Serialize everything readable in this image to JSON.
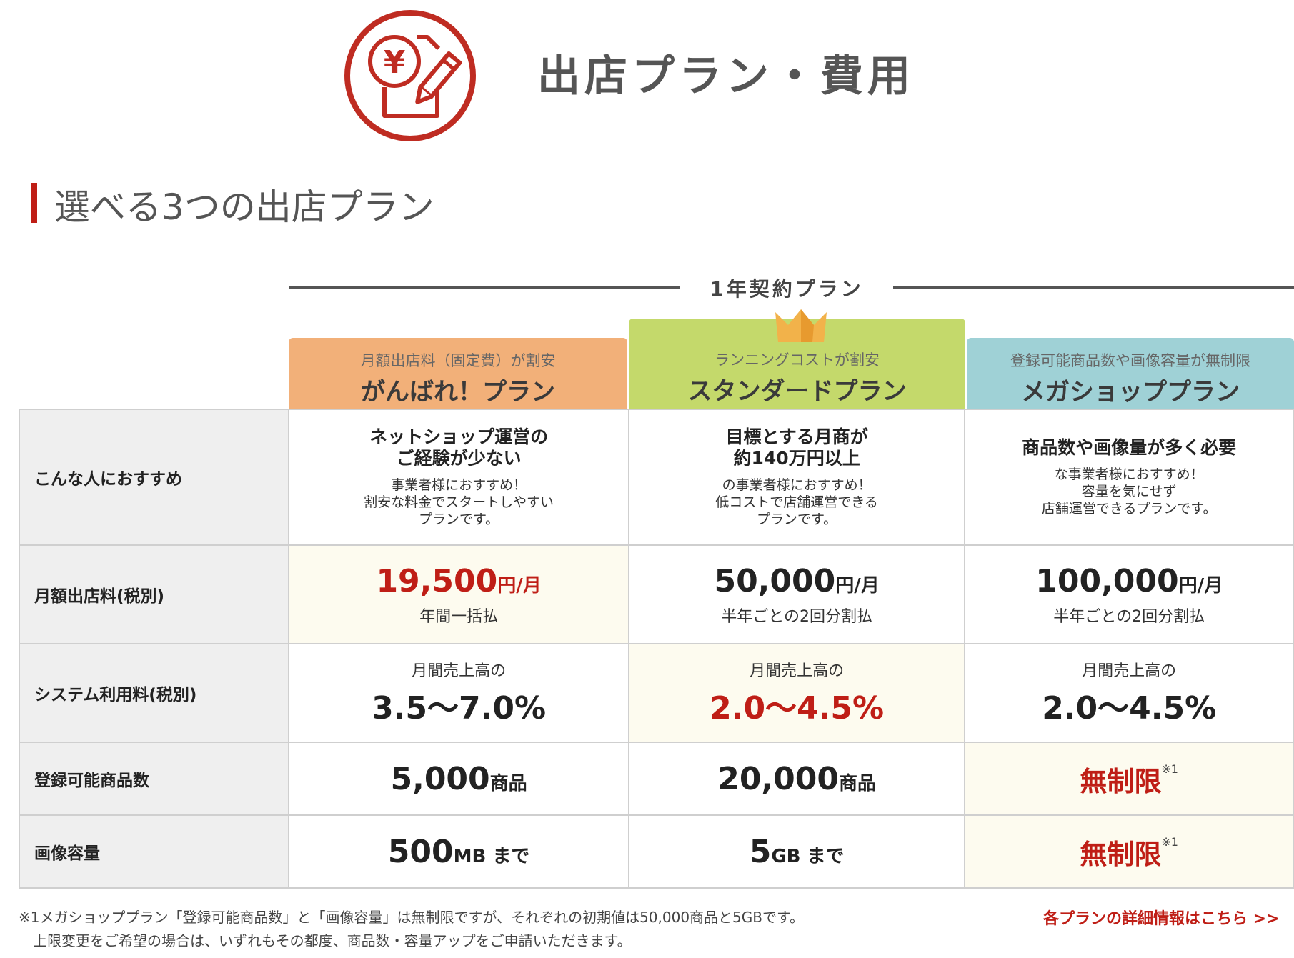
{
  "header": {
    "title": "出店プラン・費用",
    "icon": "yen-document-pen-icon"
  },
  "section": {
    "title": "選べる3つの出店プラン"
  },
  "contract_label": "1年契約プラン",
  "plans": [
    {
      "tagline": "月額出店料（固定費）が割安",
      "name": "がんばれ！プラン",
      "color": "#f2b079",
      "recommend_title_1": "ネットショップ運営の",
      "recommend_title_2": "ご経験が少ない",
      "recommend_desc_1": "事業者様におすすめ！",
      "recommend_desc_2": "割安な料金でスタートしやすい",
      "recommend_desc_3": "プランです。",
      "monthly_fee": "19,500",
      "monthly_fee_unit": "円/月",
      "payment": "年間一括払",
      "rate_prefix": "月間売上高の",
      "rate": "3.5〜7.0%",
      "products": "5,000",
      "products_unit": "商品",
      "image_capacity": "500",
      "image_capacity_unit": "MB まで"
    },
    {
      "tagline": "ランニングコストが割安",
      "name": "スタンダードプラン",
      "color": "#c4d96b",
      "recommend_title_1": "目標とする月商が",
      "recommend_title_2": "約140万円以上",
      "recommend_desc_1": "の事業者様におすすめ！",
      "recommend_desc_2": "低コストで店舗運営できる",
      "recommend_desc_3": "プランです。",
      "monthly_fee": "50,000",
      "monthly_fee_unit": "円/月",
      "payment": "半年ごとの2回分割払",
      "rate_prefix": "月間売上高の",
      "rate": "2.0〜4.5%",
      "products": "20,000",
      "products_unit": "商品",
      "image_capacity": "5",
      "image_capacity_unit": "GB まで"
    },
    {
      "tagline": "登録可能商品数や画像容量が無制限",
      "name": "メガショッププラン",
      "color": "#9fd1d6",
      "recommend_title_1": "商品数や画像量が多く必要",
      "recommend_desc_1": "な事業者様におすすめ！",
      "recommend_desc_2": "容量を気にせず",
      "recommend_desc_3": "店舗運営できるプランです。",
      "monthly_fee": "100,000",
      "monthly_fee_unit": "円/月",
      "payment": "半年ごとの2回分割払",
      "rate_prefix": "月間売上高の",
      "rate": "2.0〜4.5%",
      "products": "無制限",
      "products_note": "※1",
      "image_capacity": "無制限",
      "image_capacity_note": "※1"
    }
  ],
  "rows": {
    "recommend": "こんな人におすすめ",
    "monthly_fee": "月額出店料(税別)",
    "system_fee": "システム利用料(税別)",
    "products": "登録可能商品数",
    "image_capacity": "画像容量"
  },
  "footnote": {
    "line1": "※1メガショッププラン「登録可能商品数」と「画像容量」は無制限ですが、それぞれの初期値は50,000商品と5GBです。",
    "line2": "上限変更をご希望の場合は、いずれもその都度、商品数・容量アップをご申請いただきます。"
  },
  "detail_link": "各プランの詳細情報はこちら >>",
  "colors": {
    "accent_red": "#bf1e16",
    "highlight_bg": "#fdfbef",
    "row_header_bg": "#efefef"
  }
}
